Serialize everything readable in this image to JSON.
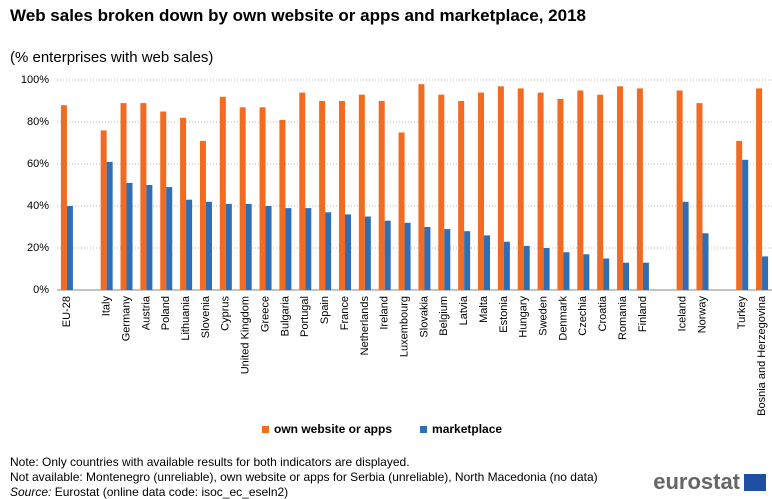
{
  "chart_data": {
    "type": "bar",
    "title": "Web sales broken down by own website or apps and marketplace, 2018",
    "subtitle": "(% enterprises with web sales)",
    "categories": [
      "EU-28",
      null,
      "Italy",
      "Germany",
      "Austria",
      "Poland",
      "Lithuania",
      "Slovenia",
      "Cyprus",
      "United Kingdom",
      "Greece",
      "Bulgaria",
      "Portugal",
      "Spain",
      "France",
      "Netherlands",
      "Ireland",
      "Luxembourg",
      "Slovakia",
      "Belgium",
      "Latvia",
      "Malta",
      "Estonia",
      "Hungary",
      "Sweden",
      "Denmark",
      "Czechia",
      "Croatia",
      "Romania",
      "Finland",
      null,
      "Iceland",
      "Norway",
      null,
      "Turkey",
      "Bosnia and Herzegovina"
    ],
    "series": [
      {
        "name": "own website or apps",
        "color": "#f26b21",
        "values": [
          88,
          null,
          76,
          89,
          89,
          85,
          82,
          71,
          92,
          87,
          87,
          81,
          94,
          90,
          90,
          93,
          90,
          75,
          98,
          93,
          90,
          94,
          97,
          96,
          94,
          91,
          95,
          93,
          97,
          96,
          null,
          95,
          89,
          null,
          71,
          96
        ]
      },
      {
        "name": "marketplace",
        "color": "#2f6db5",
        "values": [
          40,
          null,
          61,
          51,
          50,
          49,
          43,
          42,
          41,
          41,
          40,
          39,
          39,
          37,
          36,
          35,
          33,
          32,
          30,
          29,
          28,
          26,
          23,
          21,
          20,
          18,
          17,
          15,
          13,
          13,
          null,
          42,
          27,
          null,
          62,
          16
        ]
      }
    ],
    "ylim": [
      0,
      100
    ],
    "yticks": [
      {
        "value": 0,
        "label": "0%"
      },
      {
        "value": 20,
        "label": "20%"
      },
      {
        "value": 40,
        "label": "40%"
      },
      {
        "value": 60,
        "label": "60%"
      },
      {
        "value": 80,
        "label": "80%"
      },
      {
        "value": 100,
        "label": "100%"
      }
    ],
    "grid": true,
    "legend": "bottom",
    "notes": [
      "Note: Only countries with available results for both indicators are displayed.",
      "Not available: Montenegro (unreliable), own website or apps for Serbia (unreliable), North Macedonia (no data)"
    ],
    "source_label": "Source:",
    "source": "Eurostat (online data code: isoc_ec_eseln2)",
    "logo": "eurostat"
  }
}
